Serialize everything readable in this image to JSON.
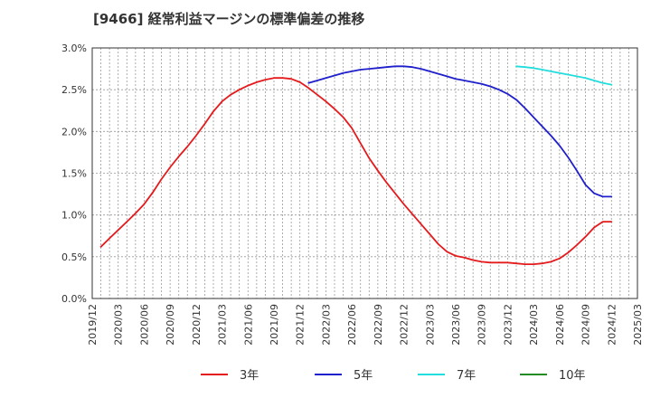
{
  "chart_data": {
    "type": "line",
    "title": "[9466]  経常利益マージンの標準偏差の推移",
    "xlabel": "",
    "ylabel": "",
    "ylim": [
      0,
      3.0
    ],
    "yticks": [
      "0.0%",
      "0.5%",
      "1.0%",
      "1.5%",
      "2.0%",
      "2.5%",
      "3.0%"
    ],
    "xlim": [
      "2019/12",
      "2025/03"
    ],
    "xticks": [
      "2019/12",
      "2020/03",
      "2020/06",
      "2020/09",
      "2020/12",
      "2021/03",
      "2021/06",
      "2021/09",
      "2021/12",
      "2022/03",
      "2022/06",
      "2022/09",
      "2022/12",
      "2023/03",
      "2023/06",
      "2023/09",
      "2023/12",
      "2024/03",
      "2024/06",
      "2024/09",
      "2024/12",
      "2025/03"
    ],
    "grid": true,
    "legend_position": "bottom",
    "series": [
      {
        "name": "3年",
        "color": "#e41a1c",
        "x": [
          "2020/01",
          "2020/02",
          "2020/03",
          "2020/04",
          "2020/05",
          "2020/06",
          "2020/07",
          "2020/08",
          "2020/09",
          "2020/10",
          "2020/11",
          "2020/12",
          "2021/01",
          "2021/02",
          "2021/03",
          "2021/04",
          "2021/05",
          "2021/06",
          "2021/07",
          "2021/08",
          "2021/09",
          "2021/10",
          "2021/11",
          "2021/12",
          "2022/01",
          "2022/02",
          "2022/03",
          "2022/04",
          "2022/05",
          "2022/06",
          "2022/07",
          "2022/08",
          "2022/09",
          "2022/10",
          "2022/11",
          "2022/12",
          "2023/01",
          "2023/02",
          "2023/03",
          "2023/04",
          "2023/05",
          "2023/06",
          "2023/07",
          "2023/08",
          "2023/09",
          "2023/10",
          "2023/11",
          "2023/12",
          "2024/01",
          "2024/02",
          "2024/03",
          "2024/04",
          "2024/05",
          "2024/06",
          "2024/07",
          "2024/08",
          "2024/09",
          "2024/10",
          "2024/11",
          "2024/12"
        ],
        "values": [
          0.62,
          0.72,
          0.82,
          0.92,
          1.02,
          1.13,
          1.27,
          1.43,
          1.57,
          1.7,
          1.82,
          1.95,
          2.09,
          2.24,
          2.36,
          2.44,
          2.5,
          2.55,
          2.59,
          2.62,
          2.64,
          2.64,
          2.63,
          2.59,
          2.52,
          2.44,
          2.36,
          2.27,
          2.17,
          2.04,
          1.86,
          1.68,
          1.53,
          1.39,
          1.26,
          1.13,
          1.01,
          0.89,
          0.77,
          0.65,
          0.56,
          0.51,
          0.49,
          0.46,
          0.44,
          0.43,
          0.43,
          0.43,
          0.42,
          0.41,
          0.41,
          0.42,
          0.44,
          0.48,
          0.55,
          0.64,
          0.74,
          0.85,
          0.92,
          0.92
        ]
      },
      {
        "name": "5年",
        "color": "#1f1fcc",
        "x": [
          "2022/01",
          "2022/02",
          "2022/03",
          "2022/04",
          "2022/05",
          "2022/06",
          "2022/07",
          "2022/08",
          "2022/09",
          "2022/10",
          "2022/11",
          "2022/12",
          "2023/01",
          "2023/02",
          "2023/03",
          "2023/04",
          "2023/05",
          "2023/06",
          "2023/07",
          "2023/08",
          "2023/09",
          "2023/10",
          "2023/11",
          "2023/12",
          "2024/01",
          "2024/02",
          "2024/03",
          "2024/04",
          "2024/05",
          "2024/06",
          "2024/07",
          "2024/08",
          "2024/09",
          "2024/10",
          "2024/11",
          "2024/12"
        ],
        "values": [
          2.58,
          2.61,
          2.64,
          2.67,
          2.7,
          2.72,
          2.74,
          2.75,
          2.76,
          2.77,
          2.78,
          2.78,
          2.77,
          2.75,
          2.72,
          2.69,
          2.66,
          2.63,
          2.61,
          2.59,
          2.57,
          2.54,
          2.5,
          2.45,
          2.38,
          2.28,
          2.17,
          2.06,
          1.95,
          1.83,
          1.69,
          1.53,
          1.36,
          1.26,
          1.22,
          1.22
        ]
      },
      {
        "name": "7年",
        "color": "#22dddd",
        "x": [
          "2024/01",
          "2024/02",
          "2024/03",
          "2024/04",
          "2024/05",
          "2024/06",
          "2024/07",
          "2024/08",
          "2024/09",
          "2024/10",
          "2024/11",
          "2024/12"
        ],
        "values": [
          2.78,
          2.77,
          2.76,
          2.74,
          2.72,
          2.7,
          2.68,
          2.66,
          2.64,
          2.61,
          2.58,
          2.56
        ]
      },
      {
        "name": "10年",
        "color": "#228b22",
        "x": [],
        "values": []
      }
    ]
  }
}
